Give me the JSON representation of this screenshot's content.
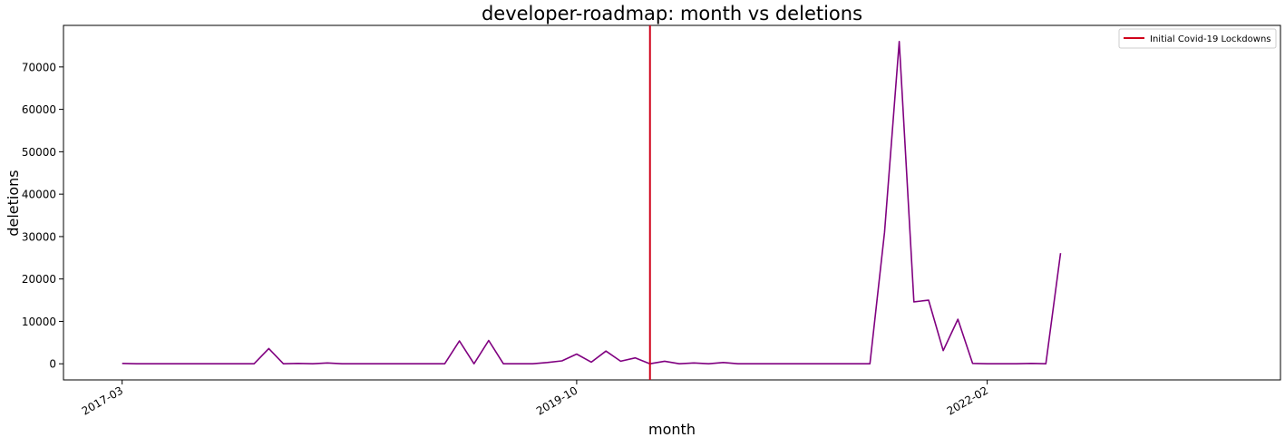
{
  "chart_data": {
    "type": "line",
    "title": "developer-roadmap: month vs deletions",
    "xlabel": "month",
    "ylabel": "deletions",
    "x_ticks": [
      "2017-03",
      "2019-10",
      "2022-02"
    ],
    "y_ticks": [
      0,
      10000,
      20000,
      30000,
      40000,
      50000,
      60000,
      70000
    ],
    "ylim": [
      -3800,
      79800
    ],
    "xlim": [
      "2016-11",
      "2023-10"
    ],
    "grid": false,
    "legend": {
      "placement": "top-right",
      "entries": [
        {
          "label": "Initial Covid-19 Lockdowns",
          "color": "#d0021b"
        }
      ]
    },
    "vline": {
      "x": "2020-03",
      "label": "Initial Covid-19 Lockdowns",
      "color": "#d0021b"
    },
    "series": [
      {
        "color": "#800080",
        "x": [
          "2017-03",
          "2017-04",
          "2017-05",
          "2017-06",
          "2017-07",
          "2017-08",
          "2017-09",
          "2017-10",
          "2017-11",
          "2017-12",
          "2018-01",
          "2018-02",
          "2018-03",
          "2018-04",
          "2018-05",
          "2018-06",
          "2018-07",
          "2018-08",
          "2018-09",
          "2018-10",
          "2018-11",
          "2018-12",
          "2019-01",
          "2019-02",
          "2019-03",
          "2019-04",
          "2019-05",
          "2019-06",
          "2019-07",
          "2019-08",
          "2019-09",
          "2019-10",
          "2019-11",
          "2019-12",
          "2020-01",
          "2020-02",
          "2020-03",
          "2020-04",
          "2020-05",
          "2020-06",
          "2020-07",
          "2020-08",
          "2020-09",
          "2020-10",
          "2020-11",
          "2020-12",
          "2021-01",
          "2021-02",
          "2021-03",
          "2021-04",
          "2021-05",
          "2021-06",
          "2021-07",
          "2021-08",
          "2021-09",
          "2021-10",
          "2021-11",
          "2021-12",
          "2022-01",
          "2022-02",
          "2022-03",
          "2022-04",
          "2022-05",
          "2022-06",
          "2022-07"
        ],
        "values": [
          100,
          0,
          0,
          0,
          0,
          0,
          0,
          0,
          0,
          0,
          3600,
          0,
          100,
          0,
          200,
          0,
          0,
          0,
          0,
          0,
          0,
          0,
          0,
          5400,
          0,
          5500,
          0,
          0,
          0,
          300,
          700,
          2300,
          400,
          3000,
          600,
          1400,
          0,
          600,
          0,
          200,
          0,
          300,
          0,
          0,
          0,
          0,
          0,
          0,
          0,
          0,
          0,
          0,
          31000,
          76000,
          14600,
          15000,
          3100,
          10500,
          100,
          0,
          0,
          0,
          100,
          0,
          26100
        ]
      }
    ]
  }
}
